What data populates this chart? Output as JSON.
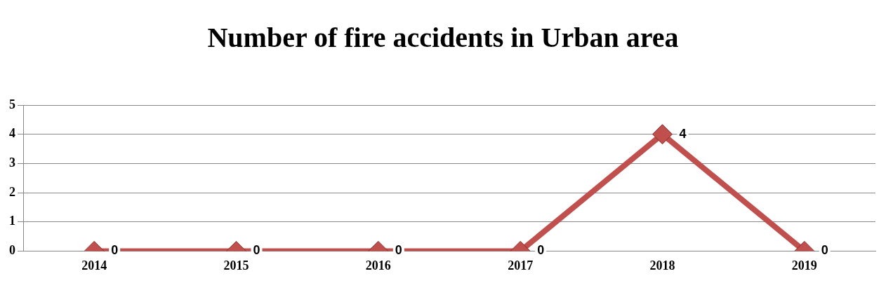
{
  "chart_data": {
    "type": "line",
    "title": "Number of fire accidents in Urban area",
    "categories": [
      "2014",
      "2015",
      "2016",
      "2017",
      "2018",
      "2019"
    ],
    "series": [
      {
        "color": "#c0504d",
        "values": [
          0,
          0,
          0,
          0,
          4,
          0
        ]
      }
    ],
    "ylim": [
      0,
      5
    ],
    "yticks": [
      0,
      1,
      2,
      3,
      4,
      5
    ],
    "grid": "y",
    "marker": "diamond",
    "data_labels": true,
    "legend": false
  }
}
